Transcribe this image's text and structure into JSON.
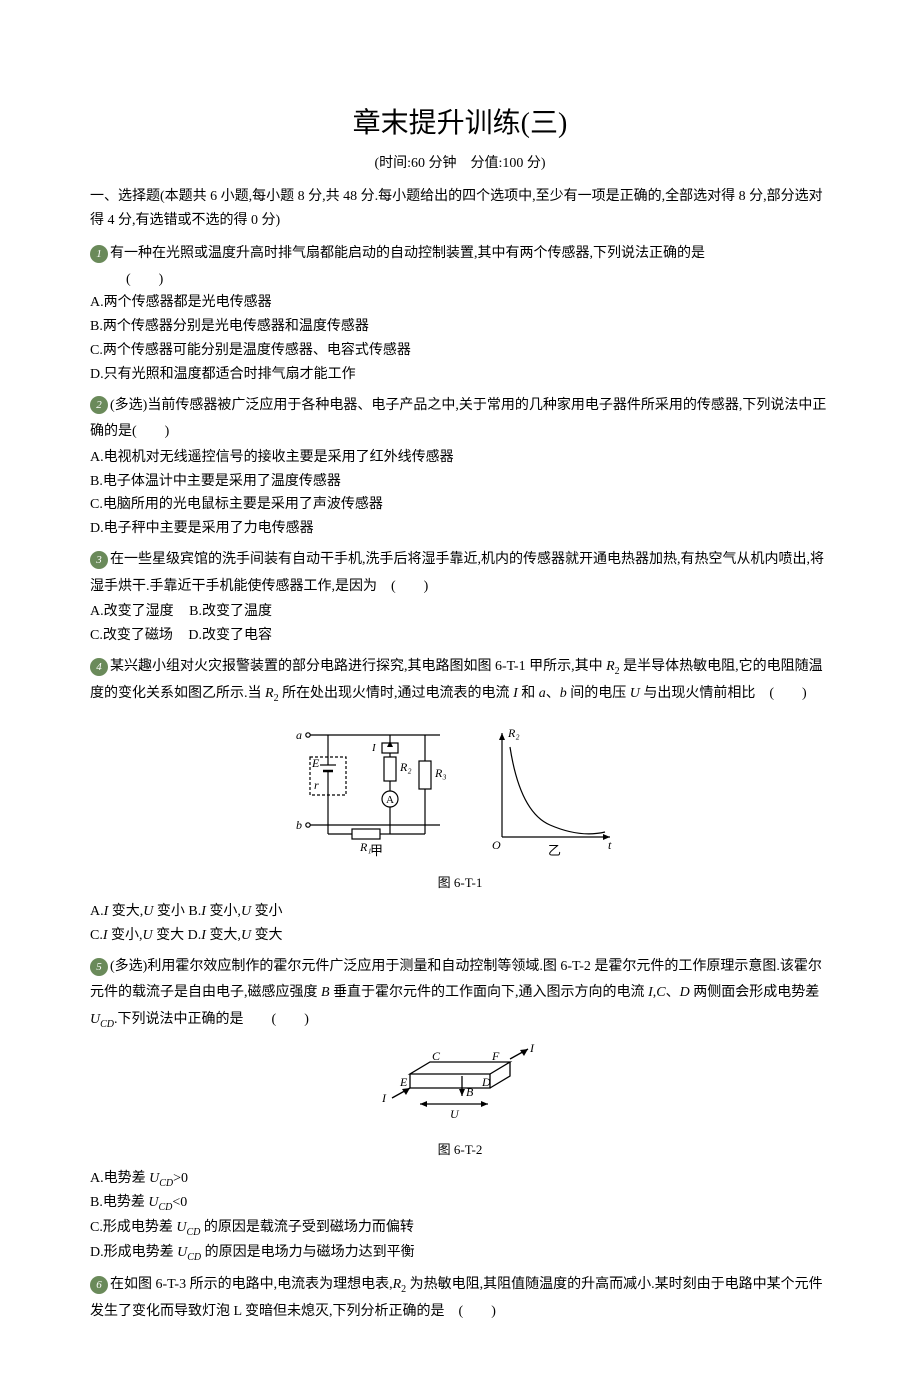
{
  "title": "章末提升训练(三)",
  "subtitle": "(时间:60 分钟　分值:100 分)",
  "section_intro": "一、选择题(本题共 6 小题,每小题 8 分,共 48 分.每小题给出的四个选项中,至少有一项是正确的,全部选对得 8 分,部分选对得 4 分,有选错或不选的得 0 分)",
  "questions": [
    {
      "num": "1",
      "stem": "有一种在光照或温度升高时排气扇都能启动的自动控制装置,其中有两个传感器,下列说法正确的是",
      "blank": "(　　)",
      "blank_indent": true,
      "options": [
        "A.两个传感器都是光电传感器",
        "B.两个传感器分别是光电传感器和温度传感器",
        "C.两个传感器可能分别是温度传感器、电容式传感器",
        "D.只有光照和温度都适合时排气扇才能工作"
      ],
      "layout": "block"
    },
    {
      "num": "2",
      "stem": "(多选)当前传感器被广泛应用于各种电器、电子产品之中,关于常用的几种家用电子器件所采用的传感器,下列说法中正确的是",
      "blank": "(　　)",
      "options": [
        "A.电视机对无线遥控信号的接收主要是采用了红外线传感器",
        "B.电子体温计中主要是采用了温度传感器",
        "C.电脑所用的光电鼠标主要是采用了声波传感器",
        "D.电子秤中主要是采用了力电传感器"
      ],
      "layout": "block"
    },
    {
      "num": "3",
      "stem": "在一些星级宾馆的洗手间装有自动干手机,洗手后将湿手靠近,机内的传感器就开通电热器加热,有热空气从机内喷出,将湿手烘干.手靠近干手机能使传感器工作,是因为　",
      "blank": "(　　)",
      "options": [
        "A.改变了湿度",
        "B.改变了温度",
        "C.改变了磁场",
        "D.改变了电容"
      ],
      "layout": "inline2"
    },
    {
      "num": "4",
      "stem_html": "某兴趣小组对火灾报警装置的部分电路进行探究,其电路图如图 6-T-1 甲所示,其中 <span class=\"italic\">R</span><span class=\"sub\">2</span> 是半导体热敏电阻,它的电阻随温度的变化关系如图乙所示.当 <span class=\"italic\">R</span><span class=\"sub\">2</span> 所在处出现火情时,通过电流表的电流 <span class=\"italic\">I</span> 和 <span class=\"italic\">a</span>、<span class=\"italic\">b</span> 间的电压 <span class=\"italic\">U</span> 与出现火情前相比　",
      "blank": "(　　)",
      "figure": "fig1",
      "figure_caption": "图 6-T-1",
      "options_html": [
        "A.<span class=\"italic\">I</span> 变大,<span class=\"italic\">U</span> 变小",
        "B.<span class=\"italic\">I</span> 变小,<span class=\"italic\">U</span> 变小",
        "C.<span class=\"italic\">I</span> 变小,<span class=\"italic\">U</span> 变大",
        "D.<span class=\"italic\">I</span> 变大,<span class=\"italic\">U</span> 变大"
      ],
      "layout": "inline2"
    },
    {
      "num": "5",
      "stem_html": "(多选)利用霍尔效应制作的霍尔元件广泛应用于测量和自动控制等领域.图 6-T-2 是霍尔元件的工作原理示意图.该霍尔元件的载流子是自由电子,磁感应强度 <span class=\"italic\">B</span> 垂直于霍尔元件的工作面向下,通入图示方向的电流 <span class=\"italic\">I</span>,<span class=\"italic\">C</span>、<span class=\"italic\">D</span> 两侧面会形成电势差 <span class=\"italic\">U<span class=\"sub\">CD</span></span>.下列说法中正确的是　　",
      "blank": "(　　)",
      "figure": "fig2",
      "figure_caption": "图 6-T-2",
      "options_html": [
        "A.电势差 <span class=\"italic\">U<span class=\"sub\">CD</span></span>&gt;0",
        "B.电势差 <span class=\"italic\">U<span class=\"sub\">CD</span></span>&lt;0",
        "C.形成电势差 <span class=\"italic\">U<span class=\"sub\">CD</span></span> 的原因是载流子受到磁场力而偏转",
        "D.形成电势差 <span class=\"italic\">U<span class=\"sub\">CD</span></span> 的原因是电场力与磁场力达到平衡"
      ],
      "layout": "block"
    },
    {
      "num": "6",
      "stem_html": "在如图 6-T-3 所示的电路中,电流表为理想电表,<span class=\"italic\">R</span><span class=\"sub\">2</span> 为热敏电阻,其阻值随温度的升高而减小.某时刻由于电路中某个元件发生了变化而导致灯泡 L 变暗但未熄灭,下列分析正确的是　",
      "blank": "(　　)"
    }
  ],
  "figures": {
    "fig1": {
      "type": "circuit_and_graph",
      "circuit": {
        "labels": {
          "a": "a",
          "b": "b",
          "E": "E",
          "r": "r",
          "R1": "R₁",
          "R2": "R₂",
          "R3": "R₃",
          "I": "I",
          "A": "A",
          "caption": "甲"
        },
        "stroke": "#000"
      },
      "graph": {
        "ylabel": "R₂",
        "xlabel": "t",
        "origin": "O",
        "caption": "乙",
        "curve_color": "#000",
        "axis_color": "#000"
      }
    },
    "fig2": {
      "type": "hall_element",
      "labels": {
        "C": "C",
        "D": "D",
        "E": "E",
        "F": "F",
        "I": "I",
        "B": "B",
        "U": "U"
      },
      "stroke": "#000"
    }
  },
  "styles": {
    "marker_bg": "#6a8a5a",
    "text_color": "#000",
    "background": "#ffffff",
    "body_fontsize": 14,
    "title_fontsize": 28
  }
}
